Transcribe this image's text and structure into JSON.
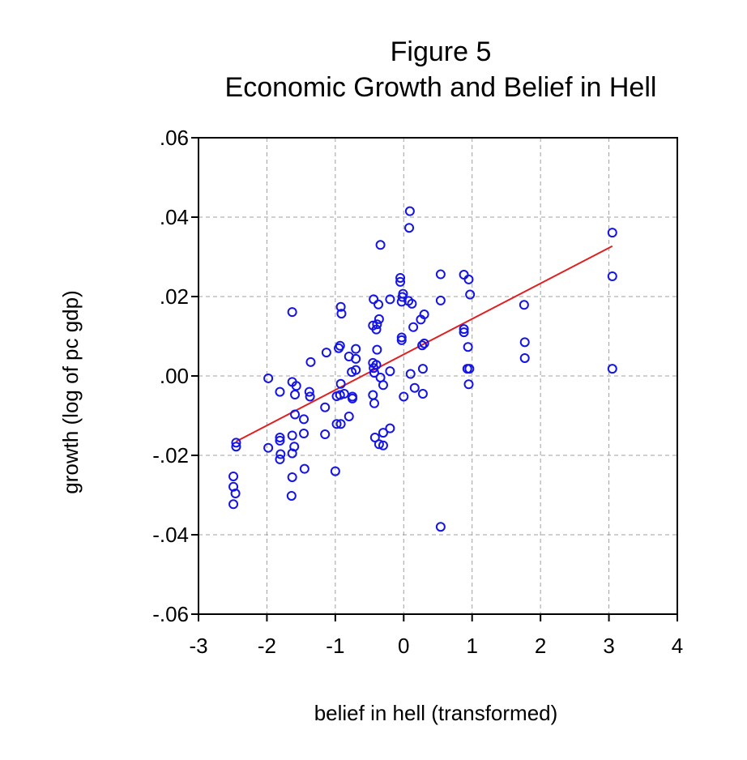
{
  "chart_data": {
    "type": "scatter",
    "title": "Figure 5",
    "subtitle": "Economic Growth and Belief in Hell",
    "xlabel": "belief in hell (transformed)",
    "ylabel": "growth (log of pc gdp)",
    "xlim": [
      -3,
      4
    ],
    "ylim": [
      -0.06,
      0.06
    ],
    "x_ticks": [
      -3,
      -2,
      -1,
      0,
      1,
      2,
      3,
      4
    ],
    "x_tick_labels": [
      "-3",
      "-2",
      "-1",
      "0",
      "1",
      "2",
      "3",
      "4"
    ],
    "y_ticks": [
      0.06,
      0.04,
      0.02,
      0.0,
      -0.02,
      -0.04,
      -0.06
    ],
    "y_tick_labels": [
      ".06",
      ".04",
      ".02",
      ".00",
      "-.02",
      "-.04",
      "-.06"
    ],
    "grid": true,
    "point_color": "#1414e6",
    "fit_color": "#e02020",
    "fit_line": {
      "x": [
        -2.45,
        3.05
      ],
      "y": [
        -0.0165,
        0.0327
      ]
    },
    "points": [
      {
        "x": 0.09,
        "y": 0.0415
      },
      {
        "x": 0.08,
        "y": 0.0373
      },
      {
        "x": 3.05,
        "y": 0.0361
      },
      {
        "x": -0.34,
        "y": 0.033
      },
      {
        "x": 0.54,
        "y": 0.0256
      },
      {
        "x": 0.88,
        "y": 0.0255
      },
      {
        "x": 3.05,
        "y": 0.0251
      },
      {
        "x": -0.05,
        "y": 0.0247
      },
      {
        "x": -0.05,
        "y": 0.0237
      },
      {
        "x": 0.95,
        "y": 0.0243
      },
      {
        "x": -0.01,
        "y": 0.0207
      },
      {
        "x": 0.97,
        "y": 0.0205
      },
      {
        "x": -0.02,
        "y": 0.0199
      },
      {
        "x": -0.2,
        "y": 0.0193
      },
      {
        "x": 0.07,
        "y": 0.0189
      },
      {
        "x": 0.54,
        "y": 0.019
      },
      {
        "x": -0.44,
        "y": 0.0193
      },
      {
        "x": -0.03,
        "y": 0.0187
      },
      {
        "x": 0.12,
        "y": 0.0182
      },
      {
        "x": -0.37,
        "y": 0.018
      },
      {
        "x": 1.76,
        "y": 0.0179
      },
      {
        "x": -0.92,
        "y": 0.0174
      },
      {
        "x": -1.63,
        "y": 0.0161
      },
      {
        "x": -0.91,
        "y": 0.0157
      },
      {
        "x": 0.3,
        "y": 0.0155
      },
      {
        "x": 0.25,
        "y": 0.0142
      },
      {
        "x": -0.36,
        "y": 0.0143
      },
      {
        "x": -0.39,
        "y": 0.013
      },
      {
        "x": -0.45,
        "y": 0.0127
      },
      {
        "x": 0.14,
        "y": 0.0123
      },
      {
        "x": -0.4,
        "y": 0.0117
      },
      {
        "x": 0.88,
        "y": 0.0118
      },
      {
        "x": 0.88,
        "y": 0.011
      },
      {
        "x": -0.03,
        "y": 0.0097
      },
      {
        "x": -0.03,
        "y": 0.009
      },
      {
        "x": 1.77,
        "y": 0.0085
      },
      {
        "x": 0.3,
        "y": 0.0082
      },
      {
        "x": 0.27,
        "y": 0.0077
      },
      {
        "x": -0.93,
        "y": 0.0076
      },
      {
        "x": -0.95,
        "y": 0.007
      },
      {
        "x": 0.94,
        "y": 0.0073
      },
      {
        "x": -0.7,
        "y": 0.0068
      },
      {
        "x": -0.39,
        "y": 0.0066
      },
      {
        "x": -1.13,
        "y": 0.0059
      },
      {
        "x": -0.8,
        "y": 0.0049
      },
      {
        "x": 1.77,
        "y": 0.0045
      },
      {
        "x": -0.7,
        "y": 0.0043
      },
      {
        "x": -1.36,
        "y": 0.0035
      },
      {
        "x": -0.45,
        "y": 0.0033
      },
      {
        "x": -0.4,
        "y": 0.0028
      },
      {
        "x": -0.44,
        "y": 0.002
      },
      {
        "x": 0.28,
        "y": 0.0018
      },
      {
        "x": 0.93,
        "y": 0.0018
      },
      {
        "x": 0.96,
        "y": 0.0018
      },
      {
        "x": 3.05,
        "y": 0.0018
      },
      {
        "x": -0.7,
        "y": 0.0015
      },
      {
        "x": -0.2,
        "y": 0.0012
      },
      {
        "x": -0.76,
        "y": 0.001
      },
      {
        "x": -0.43,
        "y": 0.0008
      },
      {
        "x": 0.1,
        "y": 0.0005
      },
      {
        "x": -0.34,
        "y": -0.0004
      },
      {
        "x": -1.98,
        "y": -0.0006
      },
      {
        "x": -1.63,
        "y": -0.0015
      },
      {
        "x": -0.92,
        "y": -0.002
      },
      {
        "x": -0.3,
        "y": -0.0023
      },
      {
        "x": 0.95,
        "y": -0.0021
      },
      {
        "x": -1.57,
        "y": -0.0025
      },
      {
        "x": 0.16,
        "y": -0.003
      },
      {
        "x": -1.81,
        "y": -0.004
      },
      {
        "x": -1.38,
        "y": -0.004
      },
      {
        "x": -0.87,
        "y": -0.0045
      },
      {
        "x": 0.28,
        "y": -0.0045
      },
      {
        "x": -0.93,
        "y": -0.0048
      },
      {
        "x": -0.45,
        "y": -0.0048
      },
      {
        "x": -1.37,
        "y": -0.0052
      },
      {
        "x": -0.98,
        "y": -0.0051
      },
      {
        "x": -0.75,
        "y": -0.0052
      },
      {
        "x": -1.59,
        "y": -0.0047
      },
      {
        "x": 0.0,
        "y": -0.0052
      },
      {
        "x": -0.75,
        "y": -0.0057
      },
      {
        "x": -0.43,
        "y": -0.0069
      },
      {
        "x": -1.15,
        "y": -0.0079
      },
      {
        "x": -1.59,
        "y": -0.0097
      },
      {
        "x": -0.8,
        "y": -0.0102
      },
      {
        "x": -1.46,
        "y": -0.0109
      },
      {
        "x": -0.98,
        "y": -0.0121
      },
      {
        "x": -0.92,
        "y": -0.0121
      },
      {
        "x": -0.2,
        "y": -0.0132
      },
      {
        "x": -1.46,
        "y": -0.0145
      },
      {
        "x": -0.3,
        "y": -0.0143
      },
      {
        "x": -1.15,
        "y": -0.0147
      },
      {
        "x": -1.63,
        "y": -0.015
      },
      {
        "x": -1.81,
        "y": -0.0155
      },
      {
        "x": -0.42,
        "y": -0.0155
      },
      {
        "x": -1.81,
        "y": -0.0163
      },
      {
        "x": -2.45,
        "y": -0.0168
      },
      {
        "x": -0.36,
        "y": -0.0172
      },
      {
        "x": -0.3,
        "y": -0.0175
      },
      {
        "x": -1.6,
        "y": -0.0178
      },
      {
        "x": -2.45,
        "y": -0.0178
      },
      {
        "x": -1.98,
        "y": -0.0181
      },
      {
        "x": -1.63,
        "y": -0.0195
      },
      {
        "x": -1.8,
        "y": -0.0197
      },
      {
        "x": -1.81,
        "y": -0.021
      },
      {
        "x": -1.45,
        "y": -0.0234
      },
      {
        "x": -1.0,
        "y": -0.024
      },
      {
        "x": -2.49,
        "y": -0.0253
      },
      {
        "x": -1.63,
        "y": -0.0255
      },
      {
        "x": -2.49,
        "y": -0.0279
      },
      {
        "x": -2.46,
        "y": -0.0296
      },
      {
        "x": -1.64,
        "y": -0.0302
      },
      {
        "x": -2.49,
        "y": -0.0323
      },
      {
        "x": 0.54,
        "y": -0.038
      }
    ]
  }
}
